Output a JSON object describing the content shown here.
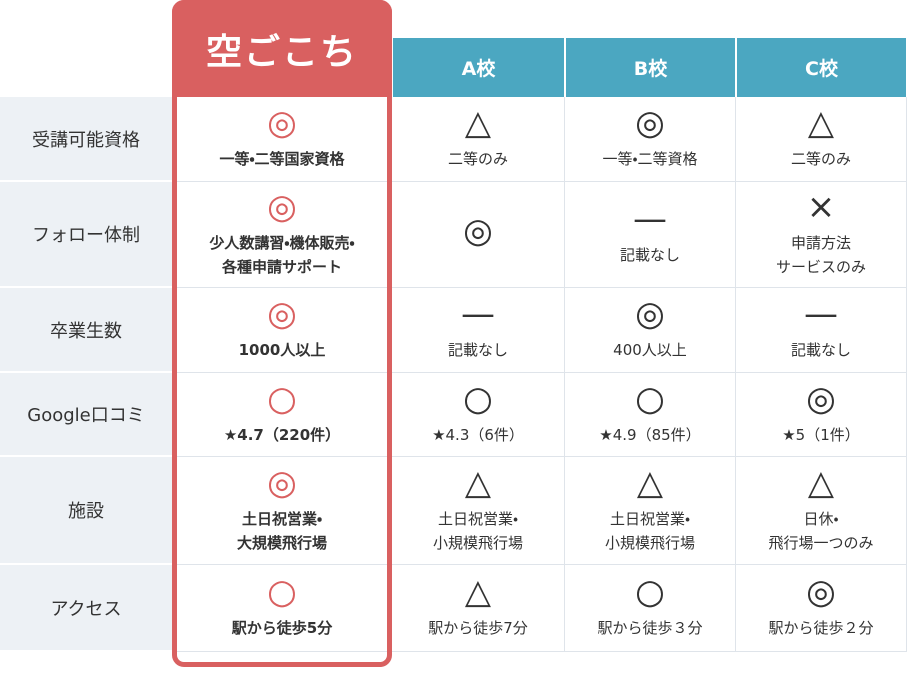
{
  "columns": [
    "空ごこち",
    "A校",
    "B校",
    "C校"
  ],
  "rows": [
    {
      "label": "受講可能資格",
      "cells": [
        {
          "symbol": "◎",
          "text": "一等・二等国家資格"
        },
        {
          "symbol": "△",
          "text": "二等のみ"
        },
        {
          "symbol": "◎",
          "text": "一等・二等資格"
        },
        {
          "symbol": "△",
          "text": "二等のみ"
        }
      ]
    },
    {
      "label": "フォロー体制",
      "cells": [
        {
          "symbol": "◎",
          "text": "少人数講習・機体販売・\n各種申請サポート"
        },
        {
          "symbol": "◎"
        },
        {
          "symbol": "—",
          "text": "記載なし"
        },
        {
          "symbol": "×",
          "text": "申請方法\nサービスのみ"
        }
      ]
    },
    {
      "label": "卒業生数",
      "cells": [
        {
          "symbol": "◎",
          "text": "1000人以上"
        },
        {
          "symbol": "—",
          "text": "記載なし"
        },
        {
          "symbol": "◎",
          "text": "400人以上"
        },
        {
          "symbol": "—",
          "text": "記載なし"
        }
      ]
    },
    {
      "label": "Google口コミ",
      "cells": [
        {
          "symbol": "○",
          "text": "★4.7（220件）"
        },
        {
          "symbol": "○",
          "text": "★4.3（6件）"
        },
        {
          "symbol": "○",
          "text": "★4.9（85件）"
        },
        {
          "symbol": "◎",
          "text": "★5（1件）"
        }
      ]
    },
    {
      "label": "施設",
      "cells": [
        {
          "symbol": "◎",
          "text": "土日祝営業・\n大規模飛行場"
        },
        {
          "symbol": "△",
          "text": "土日祝営業・\n小規模飛行場"
        },
        {
          "symbol": "△",
          "text": "土日祝営業・\n小規模飛行場"
        },
        {
          "symbol": "△",
          "text": "日休・\n飛行場一つのみ"
        }
      ]
    },
    {
      "label": "アクセス",
      "cells": [
        {
          "symbol": "○",
          "text": "駅から徒歩5分"
        },
        {
          "symbol": "△",
          "text": "駅から徒歩7分"
        },
        {
          "symbol": "○",
          "text": "駅から徒歩３分"
        },
        {
          "symbol": "◎",
          "text": "駅から徒歩２分"
        }
      ]
    }
  ]
}
